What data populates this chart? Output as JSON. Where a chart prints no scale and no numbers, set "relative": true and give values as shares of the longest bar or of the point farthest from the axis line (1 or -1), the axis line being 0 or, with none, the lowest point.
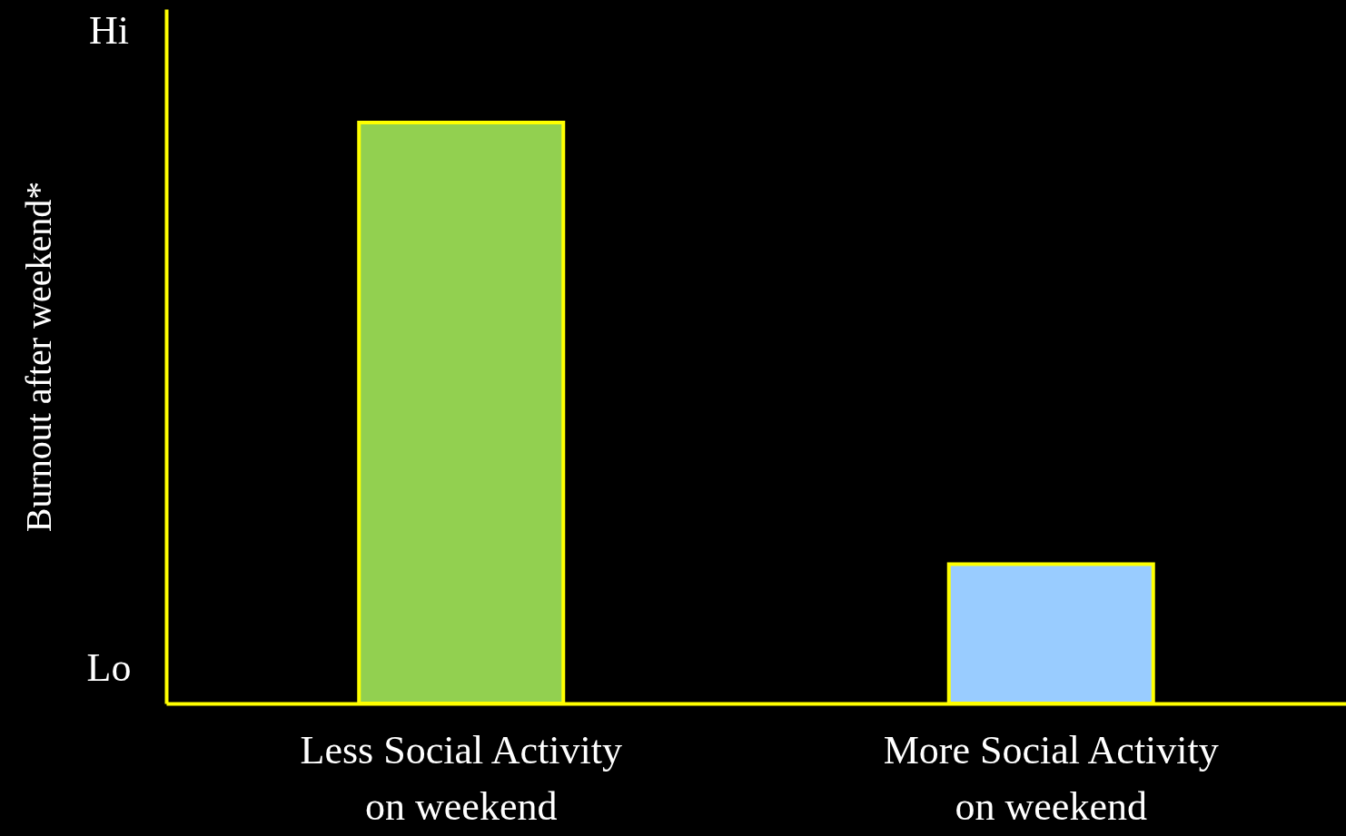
{
  "chart_data": {
    "type": "bar",
    "relative": true,
    "ylabel": "Burnout  after weekend*",
    "categories": [
      "Less Social Activity on weekend",
      "More Social Activity on weekend"
    ],
    "values": [
      1,
      0.24
    ],
    "colors": [
      "#92d050",
      "#99ccff"
    ],
    "annotations": [
      "Hi",
      "Lo"
    ]
  }
}
